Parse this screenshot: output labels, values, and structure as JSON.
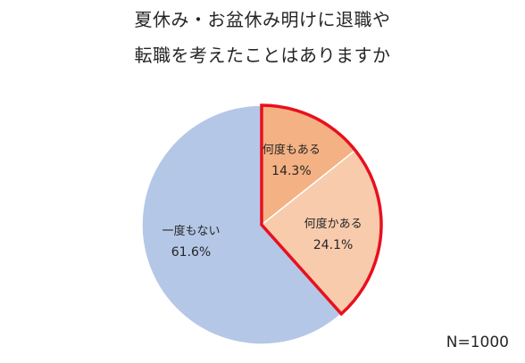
{
  "title_lines": [
    "夏休み・お盆休み明けに退職や",
    "転職を考えたことはありますか"
  ],
  "sample_note": "N=1000",
  "chart_data": {
    "type": "pie",
    "title": "夏休み・お盆休み明けに退職や転職を考えたことはありますか",
    "slices": [
      {
        "label": "何度もある",
        "value": 14.3,
        "value_label": "14.3%",
        "color": "#f4b183",
        "highlight": true
      },
      {
        "label": "何度かある",
        "value": 24.1,
        "value_label": "24.1%",
        "color": "#f8cbad",
        "highlight": true
      },
      {
        "label": "一度もない",
        "value": 61.6,
        "value_label": "61.6%",
        "color": "#b4c7e7",
        "highlight": false
      }
    ],
    "start_angle_deg": 0,
    "direction": "clockwise",
    "highlight_color": "#e8101e",
    "legend": "none",
    "sample_size": "N=1000"
  }
}
